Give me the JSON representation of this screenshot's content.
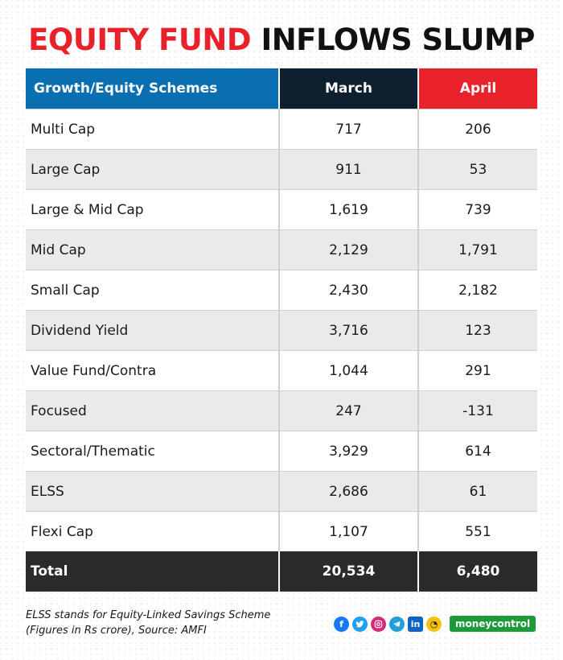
{
  "header": {
    "title_highlight": "EQUITY FUND",
    "title_rest": "INFLOWS SLUMP"
  },
  "colors": {
    "title_red": "#e8212b",
    "header_blue": "#0a6fb1",
    "header_dark": "#0e1f2e",
    "header_red": "#e8212b",
    "total_dark": "#2b2b2b",
    "brand_green": "#1d9a3a"
  },
  "chart_data": {
    "type": "table",
    "title": "EQUITY FUND INFLOWS SLUMP",
    "columns": [
      "Growth/Equity Schemes",
      "March",
      "April"
    ],
    "rows": [
      {
        "scheme": "Multi Cap",
        "march": "717",
        "april": "206"
      },
      {
        "scheme": "Large Cap",
        "march": "911",
        "april": "53"
      },
      {
        "scheme": "Large & Mid Cap",
        "march": "1,619",
        "april": "739"
      },
      {
        "scheme": "Mid Cap",
        "march": "2,129",
        "april": "1,791"
      },
      {
        "scheme": "Small Cap",
        "march": "2,430",
        "april": "2,182"
      },
      {
        "scheme": "Dividend Yield",
        "march": "3,716",
        "april": "123"
      },
      {
        "scheme": "Value Fund/Contra",
        "march": "1,044",
        "april": "291"
      },
      {
        "scheme": "Focused",
        "march": "247",
        "april": "-131"
      },
      {
        "scheme": "Sectoral/Thematic",
        "march": "3,929",
        "april": "614"
      },
      {
        "scheme": "ELSS",
        "march": "2,686",
        "april": "61"
      },
      {
        "scheme": "Flexi Cap",
        "march": "1,107",
        "april": "551"
      }
    ],
    "total": {
      "label": "Total",
      "march": "20,534",
      "april": "6,480"
    }
  },
  "footnote": {
    "line1": "ELSS stands for Equity-Linked Savings Scheme",
    "line2": "(Figures in Rs crore), Source: AMFI"
  },
  "social": {
    "icons": [
      "facebook-icon",
      "twitter-icon",
      "instagram-icon",
      "telegram-icon",
      "linkedin-icon",
      "koo-icon"
    ],
    "brand": "moneycontrol"
  }
}
